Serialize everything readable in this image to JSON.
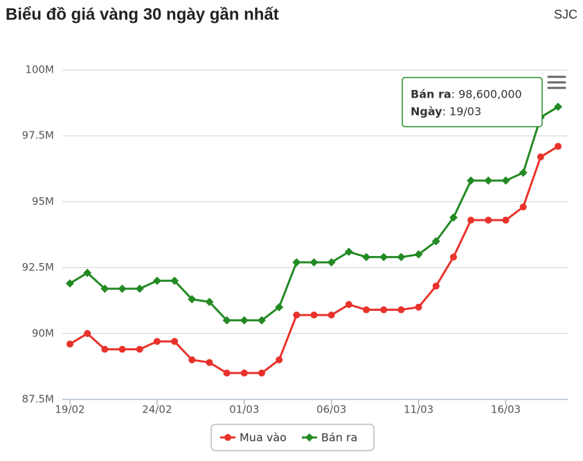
{
  "chart_data": {
    "type": "line",
    "title": "Biểu đồ giá vàng 30 ngày gần nhất",
    "source": "SJC",
    "categories": [
      "19/02",
      null,
      null,
      null,
      null,
      "24/02",
      null,
      null,
      null,
      null,
      "01/03",
      null,
      null,
      null,
      null,
      "06/03",
      null,
      null,
      null,
      null,
      "11/03",
      null,
      null,
      null,
      null,
      "16/03",
      null,
      null,
      null
    ],
    "series": [
      {
        "name": "Mua vào",
        "color": "#e8322b",
        "marker": "circle",
        "values": [
          89600000,
          90000000,
          89400000,
          89400000,
          89400000,
          89700000,
          89700000,
          89000000,
          88900000,
          88500000,
          88500000,
          88500000,
          89000000,
          90700000,
          90700000,
          90700000,
          91100000,
          90900000,
          90900000,
          90900000,
          91000000,
          91800000,
          92900000,
          94300000,
          94300000,
          94300000,
          94800000,
          96700000,
          97100000
        ]
      },
      {
        "name": "Bán ra",
        "color": "#238a23",
        "marker": "diamond",
        "values": [
          91900000,
          92300000,
          91700000,
          91700000,
          91700000,
          92000000,
          92000000,
          91300000,
          91200000,
          90500000,
          90500000,
          90500000,
          91000000,
          92700000,
          92700000,
          92700000,
          93100000,
          92900000,
          92900000,
          92900000,
          93000000,
          93500000,
          94400000,
          95800000,
          95800000,
          95800000,
          96100000,
          98200000,
          98600000
        ]
      }
    ],
    "ylim": [
      87500000,
      100000000
    ],
    "yticks": [
      {
        "value": 87500000,
        "label": "87.5M"
      },
      {
        "value": 90000000,
        "label": "90M"
      },
      {
        "value": 92500000,
        "label": "92.5M"
      },
      {
        "value": 95000000,
        "label": "95M"
      },
      {
        "value": 97500000,
        "label": "97.5M"
      },
      {
        "value": 100000000,
        "label": "100M"
      }
    ],
    "grid": true,
    "legend": "bottom",
    "tooltip": {
      "rows": [
        [
          "Bán ra",
          ": 98,600,000"
        ],
        [
          "Ngày",
          ": 19/03"
        ]
      ],
      "color": "#238a23"
    }
  }
}
